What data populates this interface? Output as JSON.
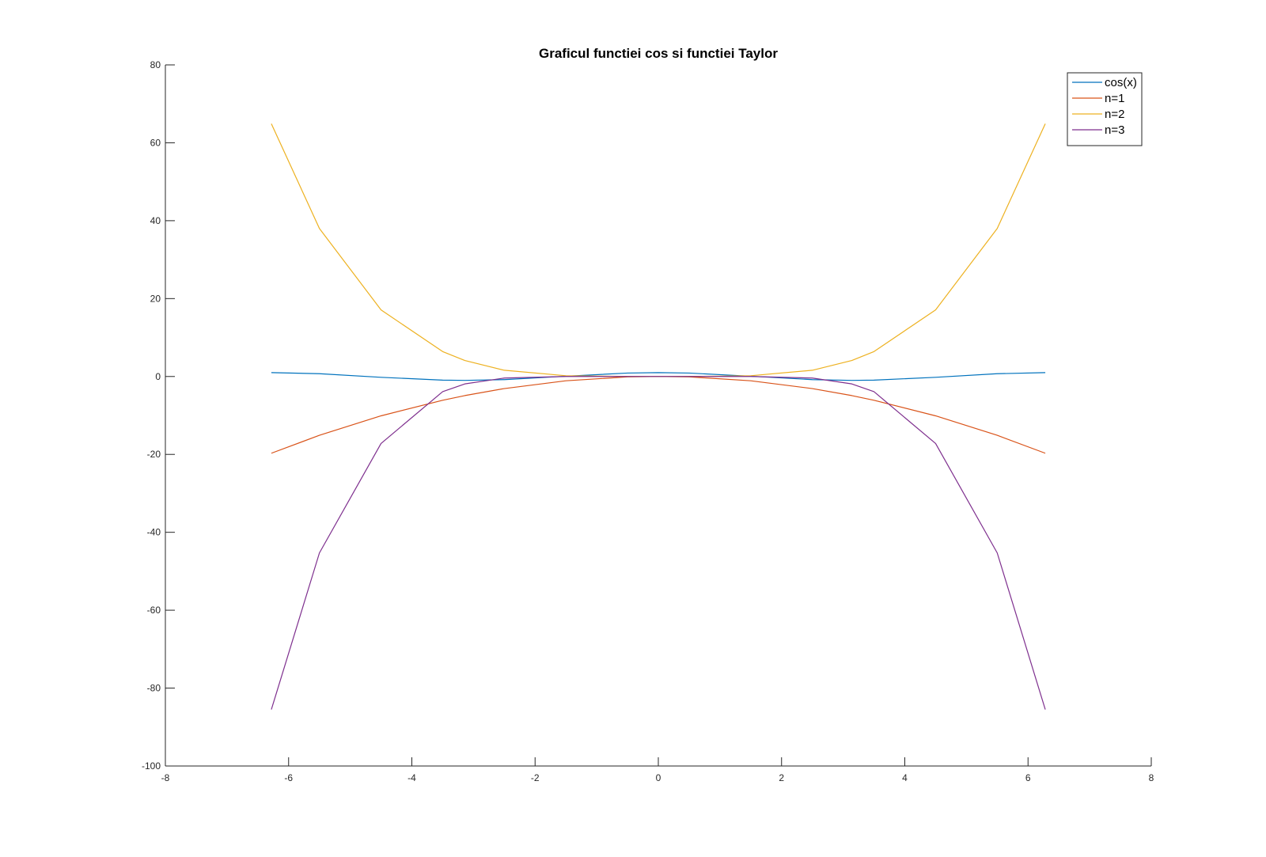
{
  "chart_data": {
    "type": "line",
    "title": "Graficul functiei cos si functiei Taylor",
    "xlabel": "",
    "ylabel": "",
    "xlim": [
      -8,
      8
    ],
    "ylim": [
      -100,
      80
    ],
    "xticks": [
      -8,
      -6,
      -4,
      -2,
      0,
      2,
      4,
      6,
      8
    ],
    "yticks": [
      -100,
      -80,
      -60,
      -40,
      -20,
      0,
      20,
      40,
      60,
      80
    ],
    "xtick_labels": [
      "-8",
      "-6",
      "-4",
      "-2",
      "0",
      "2",
      "4",
      "6",
      "8"
    ],
    "ytick_labels": [
      "-100",
      "-80",
      "-60",
      "-40",
      "-20",
      "0",
      "20",
      "40",
      "60",
      "80"
    ],
    "grid": false,
    "legend_position": "top-right",
    "x": [
      -6.28,
      -5.5,
      -4.5,
      -3.5,
      -3.14,
      -2.5,
      -1.5,
      -0.5,
      0,
      0.5,
      1.5,
      2.5,
      3.14,
      3.5,
      4.5,
      5.5,
      6.28
    ],
    "series": [
      {
        "name": "cos(x)",
        "color": "#0072bd",
        "values": [
          1.0,
          0.71,
          -0.21,
          -0.94,
          -1.0,
          -0.8,
          0.07,
          0.88,
          1.0,
          0.88,
          0.07,
          -0.8,
          -1.0,
          -0.94,
          -0.21,
          0.71,
          1.0
        ]
      },
      {
        "name": "n=1",
        "color": "#d95319",
        "values": [
          -19.7,
          -15.1,
          -10.1,
          -6.1,
          -4.9,
          -3.1,
          -1.1,
          -0.1,
          0.0,
          -0.1,
          -1.1,
          -3.1,
          -4.9,
          -6.1,
          -10.1,
          -15.1,
          -19.7
        ]
      },
      {
        "name": "n=2",
        "color": "#edb120",
        "values": [
          64.9,
          38.0,
          17.1,
          6.4,
          4.1,
          1.6,
          0.2,
          0.0,
          0.0,
          0.0,
          0.2,
          1.6,
          4.1,
          6.4,
          17.1,
          38.0,
          64.9
        ]
      },
      {
        "name": "n=3",
        "color": "#7e2f8e",
        "values": [
          -85.5,
          -45.3,
          -17.2,
          -3.9,
          -1.9,
          -0.4,
          0.0,
          0.0,
          0.0,
          0.0,
          0.0,
          -0.4,
          -1.9,
          -3.9,
          -17.2,
          -45.3,
          -85.5
        ]
      }
    ]
  }
}
